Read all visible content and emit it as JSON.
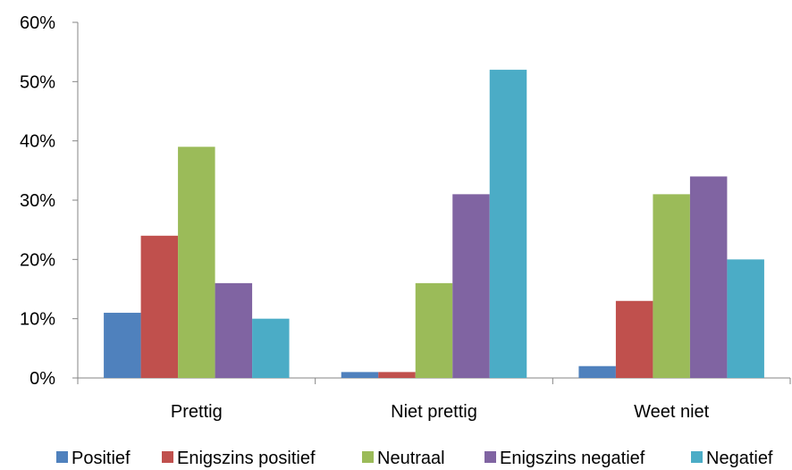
{
  "chart_data": {
    "type": "bar",
    "categories": [
      "Prettig",
      "Niet prettig",
      "Weet niet"
    ],
    "series": [
      {
        "name": "Positief",
        "color": "#4F81BD",
        "values": [
          11,
          1,
          2
        ]
      },
      {
        "name": "Enigszins positief",
        "color": "#C0504D",
        "values": [
          24,
          1,
          13
        ]
      },
      {
        "name": "Neutraal",
        "color": "#9BBB59",
        "values": [
          39,
          16,
          31
        ]
      },
      {
        "name": "Enigszins negatief",
        "color": "#8064A2",
        "values": [
          16,
          31,
          34
        ]
      },
      {
        "name": "Negatief",
        "color": "#4BACC6",
        "values": [
          10,
          52,
          20
        ]
      }
    ],
    "yticks": [
      "0%",
      "10%",
      "20%",
      "30%",
      "40%",
      "50%",
      "60%"
    ],
    "ylim": [
      0,
      60
    ],
    "grid": false,
    "legend_position": "bottom"
  }
}
